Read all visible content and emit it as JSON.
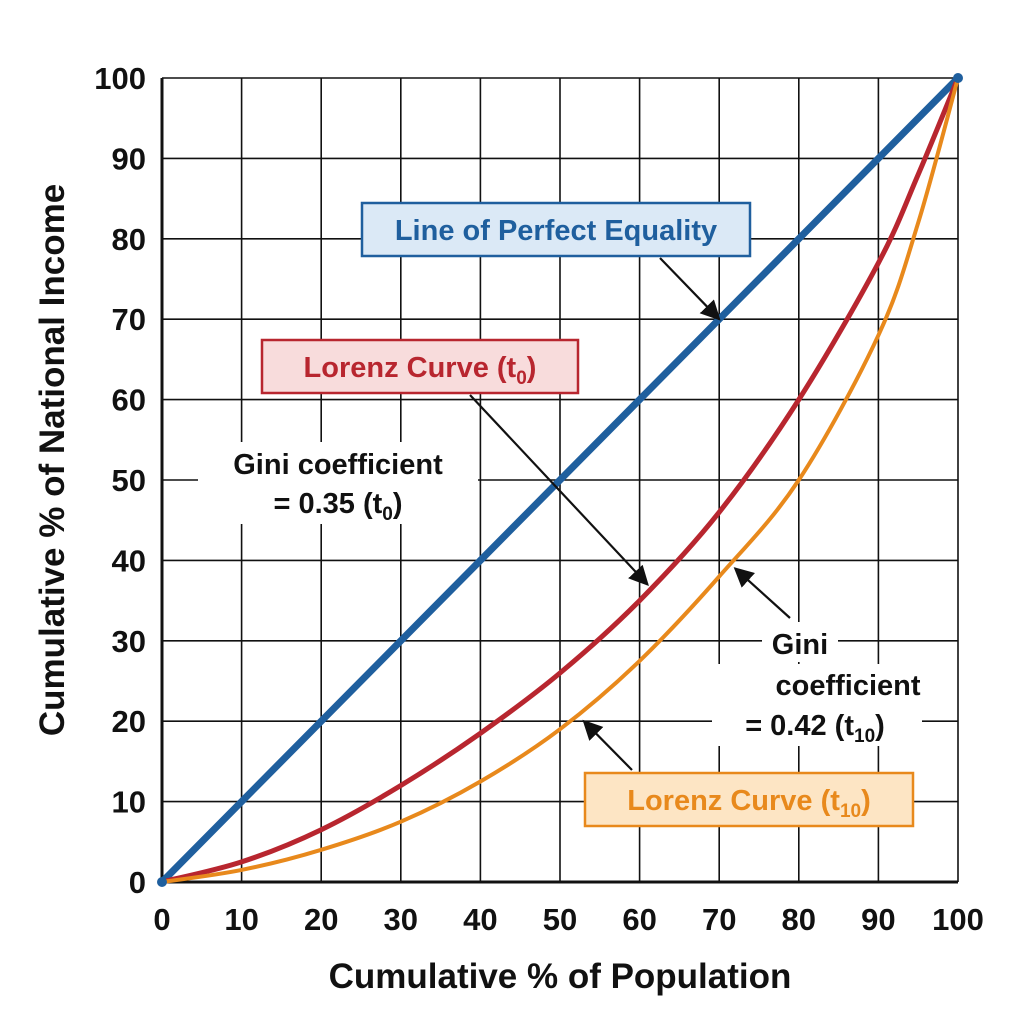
{
  "chart_data": {
    "type": "line",
    "xlabel": "Cumulative % of Population",
    "ylabel": "Cumulative % of National Income",
    "xlim": [
      0,
      100
    ],
    "ylim": [
      0,
      100
    ],
    "xticks": [
      0,
      10,
      20,
      30,
      40,
      50,
      60,
      70,
      80,
      90,
      100
    ],
    "yticks": [
      0,
      10,
      20,
      30,
      40,
      50,
      60,
      70,
      80,
      90,
      100
    ],
    "grid": true,
    "series": [
      {
        "name": "Line of Perfect Equality",
        "color": "#1f5f9e",
        "x": [
          0,
          100
        ],
        "y": [
          0,
          100
        ]
      },
      {
        "name": "Lorenz Curve (t0)",
        "color": "#b8262f",
        "x": [
          0,
          10,
          20,
          30,
          40,
          50,
          60,
          70,
          80,
          90,
          95,
          100
        ],
        "y": [
          0,
          2.5,
          6.5,
          12,
          18.5,
          26,
          35,
          46,
          60,
          77,
          88,
          100
        ]
      },
      {
        "name": "Lorenz Curve (t10)",
        "color": "#e8891c",
        "x": [
          0,
          10,
          20,
          30,
          40,
          50,
          60,
          70,
          80,
          90,
          95,
          100
        ],
        "y": [
          0,
          1.5,
          4,
          7.5,
          12.5,
          19,
          27.5,
          38,
          50,
          68,
          82,
          100
        ]
      }
    ],
    "annotations": {
      "equality_label": {
        "text": "Line of Perfect Equality",
        "color": "#1f5f9e",
        "border": "#1f5f9e",
        "fill": "#dbe9f6",
        "target": [
          70,
          70
        ]
      },
      "lorenz_t0_label": {
        "prefix": "Lorenz Curve (t",
        "sub": "0",
        "suffix": ")",
        "color": "#b8262f",
        "border": "#b8262f",
        "fill": "#f8dcdc",
        "target": [
          61,
          37
        ]
      },
      "lorenz_t10_label": {
        "prefix": "Lorenz Curve (t",
        "sub": "10",
        "suffix": ")",
        "color": "#e8891c",
        "border": "#e8891c",
        "fill": "#fde5c4",
        "target": [
          53,
          20
        ]
      },
      "gini_t0": {
        "line1": "Gini coefficient",
        "line2_prefix": "= 0.35 (t",
        "sub": "0",
        "suffix": ")"
      },
      "gini_t10": {
        "line1": "Gini",
        "line2": "coefficient",
        "line3_prefix": "= 0.42 (t",
        "sub": "10",
        "suffix": ")",
        "target": [
          72,
          39
        ]
      }
    }
  }
}
